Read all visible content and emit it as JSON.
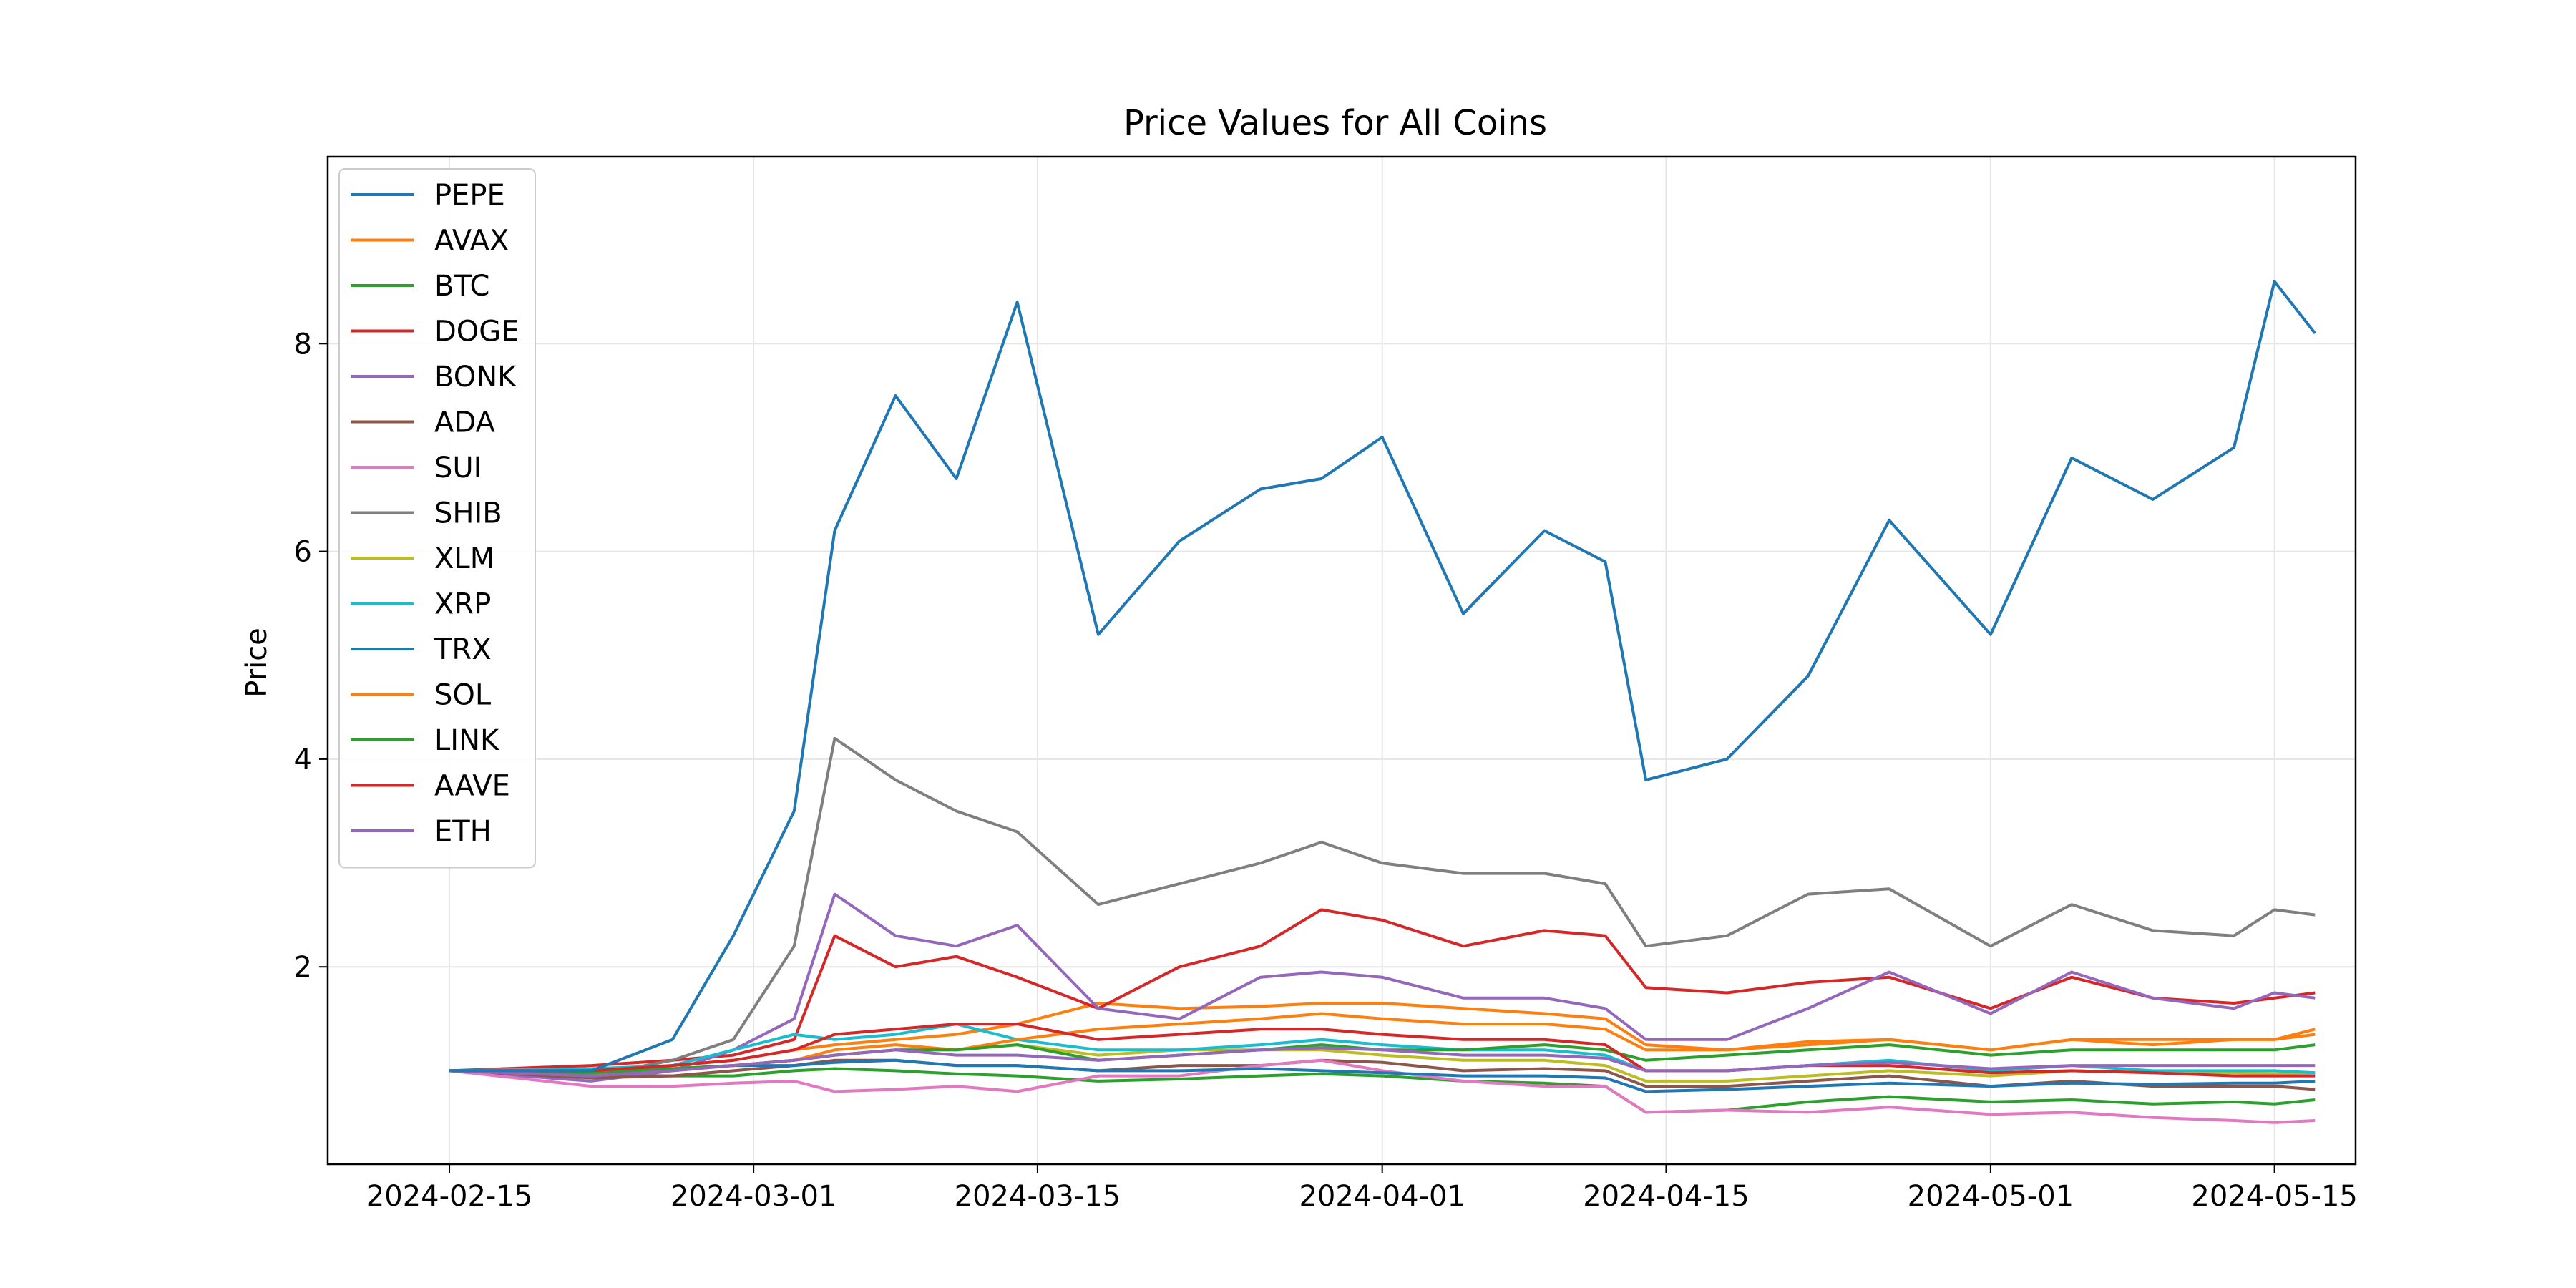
{
  "chart_data": {
    "type": "line",
    "title": "Price Values for All Coins",
    "xlabel": "",
    "ylabel": "Price",
    "x_ticks": [
      "2024-02-15",
      "2024-03-01",
      "2024-03-15",
      "2024-04-01",
      "2024-04-15",
      "2024-05-01",
      "2024-05-15"
    ],
    "y_ticks": [
      2,
      4,
      6,
      8
    ],
    "xlim": [
      "2024-02-09",
      "2024-05-19"
    ],
    "ylim": [
      0.1,
      9.8
    ],
    "grid": true,
    "legend_position": "top-left",
    "x": [
      "2024-02-15",
      "2024-02-22",
      "2024-02-26",
      "2024-02-29",
      "2024-03-03",
      "2024-03-05",
      "2024-03-08",
      "2024-03-11",
      "2024-03-14",
      "2024-03-18",
      "2024-03-22",
      "2024-03-26",
      "2024-03-29",
      "2024-04-01",
      "2024-04-05",
      "2024-04-09",
      "2024-04-12",
      "2024-04-14",
      "2024-04-18",
      "2024-04-22",
      "2024-04-26",
      "2024-05-01",
      "2024-05-05",
      "2024-05-09",
      "2024-05-13",
      "2024-05-15",
      "2024-05-17"
    ],
    "series": [
      {
        "name": "PEPE",
        "color": "#1f77b4",
        "values": [
          1.0,
          1.0,
          1.3,
          2.3,
          3.5,
          6.2,
          7.5,
          6.7,
          8.4,
          5.2,
          6.1,
          6.6,
          6.7,
          7.1,
          5.4,
          6.2,
          5.9,
          3.8,
          4.0,
          4.8,
          6.3,
          5.2,
          6.9,
          6.5,
          7.0,
          8.6,
          8.1
        ]
      },
      {
        "name": "AVAX",
        "color": "#ff7f0e",
        "values": [
          1.0,
          0.97,
          1.05,
          1.1,
          1.2,
          1.25,
          1.3,
          1.35,
          1.45,
          1.65,
          1.6,
          1.62,
          1.65,
          1.65,
          1.6,
          1.55,
          1.5,
          1.25,
          1.2,
          1.28,
          1.3,
          1.2,
          1.3,
          1.25,
          1.3,
          1.3,
          1.35
        ]
      },
      {
        "name": "BTC",
        "color": "#2ca02c",
        "values": [
          1.0,
          0.96,
          0.95,
          0.95,
          1.0,
          1.02,
          1.0,
          0.97,
          0.95,
          0.9,
          0.92,
          0.95,
          0.97,
          0.95,
          0.9,
          0.88,
          0.85,
          0.6,
          0.62,
          0.7,
          0.75,
          0.7,
          0.72,
          0.68,
          0.7,
          0.68,
          0.72
        ]
      },
      {
        "name": "DOGE",
        "color": "#d62728",
        "values": [
          1.0,
          1.05,
          1.1,
          1.15,
          1.3,
          2.3,
          2.0,
          2.1,
          1.9,
          1.6,
          2.0,
          2.2,
          2.55,
          2.45,
          2.2,
          2.35,
          2.3,
          1.8,
          1.75,
          1.85,
          1.9,
          1.6,
          1.9,
          1.7,
          1.65,
          1.7,
          1.75
        ]
      },
      {
        "name": "BONK",
        "color": "#9467bd",
        "values": [
          1.0,
          0.9,
          1.0,
          1.2,
          1.5,
          2.7,
          2.3,
          2.2,
          2.4,
          1.6,
          1.5,
          1.9,
          1.95,
          1.9,
          1.7,
          1.7,
          1.6,
          1.3,
          1.3,
          1.6,
          1.95,
          1.55,
          1.95,
          1.7,
          1.6,
          1.75,
          1.7
        ]
      },
      {
        "name": "ADA",
        "color": "#8c564b",
        "values": [
          1.0,
          0.93,
          0.95,
          1.0,
          1.05,
          1.1,
          1.1,
          1.05,
          1.05,
          1.0,
          1.05,
          1.05,
          1.1,
          1.08,
          1.0,
          1.02,
          1.0,
          0.85,
          0.85,
          0.9,
          0.95,
          0.85,
          0.9,
          0.85,
          0.85,
          0.85,
          0.82
        ]
      },
      {
        "name": "SUI",
        "color": "#e377c2",
        "values": [
          1.0,
          0.85,
          0.85,
          0.88,
          0.9,
          0.8,
          0.82,
          0.85,
          0.8,
          0.95,
          0.95,
          1.05,
          1.1,
          1.0,
          0.9,
          0.85,
          0.85,
          0.6,
          0.62,
          0.6,
          0.65,
          0.58,
          0.6,
          0.55,
          0.52,
          0.5,
          0.52
        ]
      },
      {
        "name": "SHIB",
        "color": "#7f7f7f",
        "values": [
          1.0,
          0.95,
          1.1,
          1.3,
          2.2,
          4.2,
          3.8,
          3.5,
          3.3,
          2.6,
          2.8,
          3.0,
          3.2,
          3.0,
          2.9,
          2.9,
          2.8,
          2.2,
          2.3,
          2.7,
          2.75,
          2.2,
          2.6,
          2.35,
          2.3,
          2.55,
          2.5
        ]
      },
      {
        "name": "XLM",
        "color": "#bcbd22",
        "values": [
          1.0,
          0.98,
          1.0,
          1.05,
          1.1,
          1.15,
          1.2,
          1.2,
          1.25,
          1.15,
          1.2,
          1.2,
          1.2,
          1.15,
          1.1,
          1.1,
          1.05,
          0.9,
          0.9,
          0.95,
          1.0,
          0.95,
          1.0,
          0.98,
          0.98,
          0.97,
          0.98
        ]
      },
      {
        "name": "XRP",
        "color": "#17becf",
        "values": [
          1.0,
          1.02,
          1.05,
          1.2,
          1.35,
          1.3,
          1.35,
          1.45,
          1.3,
          1.2,
          1.2,
          1.25,
          1.3,
          1.25,
          1.2,
          1.2,
          1.15,
          1.0,
          1.0,
          1.05,
          1.1,
          1.0,
          1.05,
          1.0,
          1.0,
          1.0,
          0.98
        ]
      },
      {
        "name": "TRX",
        "color": "#1f77b4",
        "values": [
          1.0,
          1.0,
          1.02,
          1.05,
          1.05,
          1.08,
          1.1,
          1.05,
          1.05,
          1.0,
          1.0,
          1.02,
          1.0,
          0.98,
          0.95,
          0.95,
          0.93,
          0.8,
          0.82,
          0.85,
          0.88,
          0.85,
          0.88,
          0.87,
          0.88,
          0.88,
          0.9
        ]
      },
      {
        "name": "SOL",
        "color": "#ff7f0e",
        "values": [
          1.0,
          0.95,
          1.0,
          1.05,
          1.1,
          1.2,
          1.25,
          1.2,
          1.3,
          1.4,
          1.45,
          1.5,
          1.55,
          1.5,
          1.45,
          1.45,
          1.4,
          1.2,
          1.2,
          1.25,
          1.3,
          1.2,
          1.3,
          1.3,
          1.3,
          1.3,
          1.4
        ]
      },
      {
        "name": "LINK",
        "color": "#2ca02c",
        "values": [
          1.0,
          0.98,
          1.02,
          1.05,
          1.1,
          1.15,
          1.2,
          1.2,
          1.25,
          1.1,
          1.15,
          1.2,
          1.25,
          1.2,
          1.2,
          1.25,
          1.2,
          1.1,
          1.15,
          1.2,
          1.25,
          1.15,
          1.2,
          1.2,
          1.2,
          1.2,
          1.25
        ]
      },
      {
        "name": "AAVE",
        "color": "#d62728",
        "values": [
          1.0,
          1.0,
          1.05,
          1.1,
          1.2,
          1.35,
          1.4,
          1.45,
          1.45,
          1.3,
          1.35,
          1.4,
          1.4,
          1.35,
          1.3,
          1.3,
          1.25,
          1.0,
          1.0,
          1.05,
          1.05,
          0.98,
          1.0,
          0.98,
          0.95,
          0.95,
          0.95
        ]
      },
      {
        "name": "ETH",
        "color": "#9467bd",
        "values": [
          1.0,
          0.95,
          1.0,
          1.05,
          1.1,
          1.15,
          1.2,
          1.15,
          1.15,
          1.1,
          1.15,
          1.2,
          1.22,
          1.2,
          1.15,
          1.15,
          1.12,
          1.0,
          1.0,
          1.05,
          1.08,
          1.02,
          1.05,
          1.05,
          1.05,
          1.05,
          1.05
        ]
      }
    ]
  }
}
